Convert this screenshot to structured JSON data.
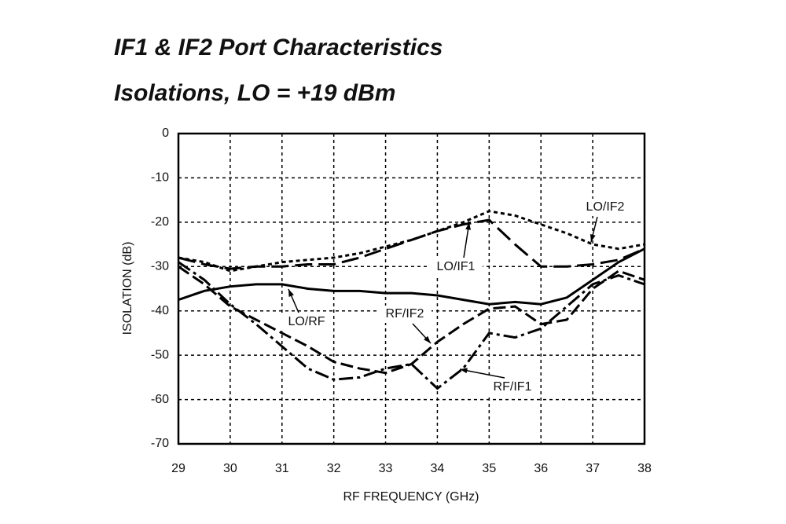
{
  "chart_data": {
    "type": "line",
    "title": "IF1 & IF2 Port Characteristics",
    "subtitle": "Isolations, LO = +19 dBm",
    "x_label": "RF FREQUENCY (GHz)",
    "y_label": "ISOLATION  (dB)",
    "x": [
      29,
      29.5,
      30,
      30.5,
      31,
      31.5,
      32,
      32.5,
      33,
      33.5,
      34,
      34.5,
      35,
      35.5,
      36,
      36.5,
      37,
      37.5,
      38
    ],
    "xlim": [
      29,
      38
    ],
    "xticks": [
      29,
      30,
      31,
      32,
      33,
      34,
      35,
      36,
      37,
      38
    ],
    "ylim": [
      -70,
      0
    ],
    "yticks": [
      0,
      -10,
      -20,
      -30,
      -40,
      -50,
      -60,
      -70
    ],
    "grid": true,
    "series": [
      {
        "name": "LO/IF2",
        "color": "#000000",
        "line_style": "dotted",
        "values": [
          -28,
          -29,
          -31,
          -30,
          -29,
          -28.5,
          -28,
          -27,
          -25.5,
          -24,
          -22,
          -20,
          -17.5,
          -18.5,
          -20.5,
          -22.5,
          -25,
          -26,
          -25
        ]
      },
      {
        "name": "LO/IF1",
        "color": "#000000",
        "line_style": "longdash",
        "values": [
          -28,
          -29.5,
          -30.5,
          -30,
          -30,
          -29.5,
          -29.5,
          -28,
          -26,
          -24,
          -22,
          -20.5,
          -19.5,
          -25,
          -30,
          -30,
          -29.5,
          -28.5,
          -26
        ]
      },
      {
        "name": "LO/RF",
        "color": "#000000",
        "line_style": "solid",
        "values": [
          -37.5,
          -35.5,
          -34.5,
          -34,
          -34,
          -35,
          -35.5,
          -35.5,
          -36,
          -36,
          -36.5,
          -37.5,
          -38.5,
          -38,
          -38.5,
          -37,
          -33,
          -29,
          -26
        ]
      },
      {
        "name": "RF/IF2",
        "color": "#000000",
        "line_style": "dashed",
        "values": [
          -30,
          -34,
          -39,
          -42,
          -45,
          -48,
          -51.5,
          -53,
          -54,
          -52,
          -47,
          -43,
          -39.5,
          -39,
          -43,
          -42,
          -35,
          -31,
          -33
        ]
      },
      {
        "name": "RF/IF1",
        "color": "#000000",
        "line_style": "dashdot",
        "values": [
          -29,
          -33,
          -38.5,
          -43,
          -48,
          -53,
          -55.5,
          -55,
          -53,
          -52,
          -57.5,
          -53,
          -45,
          -46,
          -44,
          -39,
          -34,
          -32,
          -34
        ]
      }
    ]
  }
}
